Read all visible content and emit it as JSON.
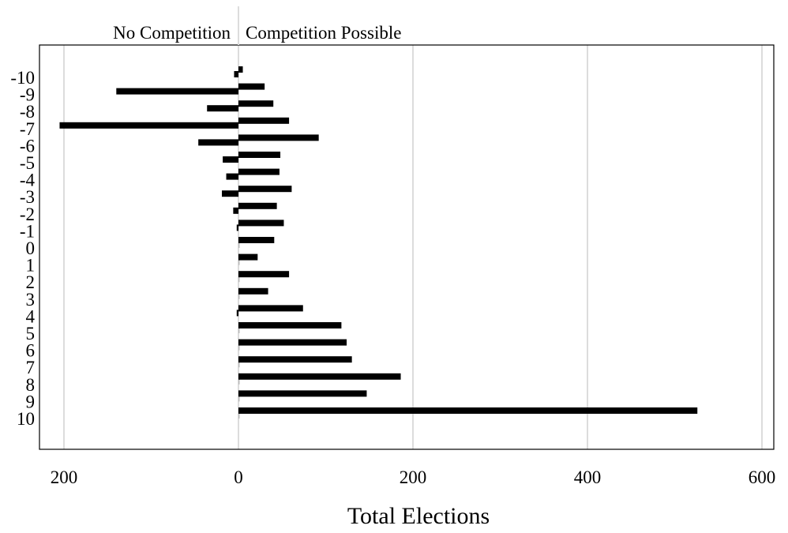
{
  "chart_data": {
    "type": "bar",
    "orientation": "horizontal-diverging",
    "categories": [
      "-10",
      "-9",
      "-8",
      "-7",
      "-6",
      "-5",
      "-4",
      "-3",
      "-2",
      "-1",
      "0",
      "1",
      "2",
      "3",
      "4",
      "5",
      "6",
      "7",
      "8",
      "9",
      "10"
    ],
    "series": [
      {
        "name": "No Competition",
        "values": [
          5,
          140,
          36,
          205,
          46,
          18,
          14,
          19,
          6,
          2,
          0,
          0,
          0,
          0,
          2,
          0,
          0,
          0,
          0,
          0,
          0
        ]
      },
      {
        "name": "Competition Possible",
        "values": [
          5,
          30,
          40,
          58,
          92,
          48,
          47,
          61,
          44,
          52,
          41,
          22,
          58,
          34,
          74,
          118,
          124,
          130,
          186,
          147,
          526
        ]
      }
    ],
    "side_labels": {
      "left": "No Competition",
      "right": "Competition Possible"
    },
    "xlabel": "Total Elections",
    "x_tick_labels": [
      "200",
      "0",
      "200",
      "400",
      "600"
    ],
    "x_tick_values": [
      -200,
      0,
      200,
      400,
      600
    ],
    "xlim": [
      -230,
      605
    ],
    "grid": "vertical",
    "colors": {
      "bar": "#000000",
      "grid": "#dcdcdc",
      "axis": "#000000"
    }
  }
}
